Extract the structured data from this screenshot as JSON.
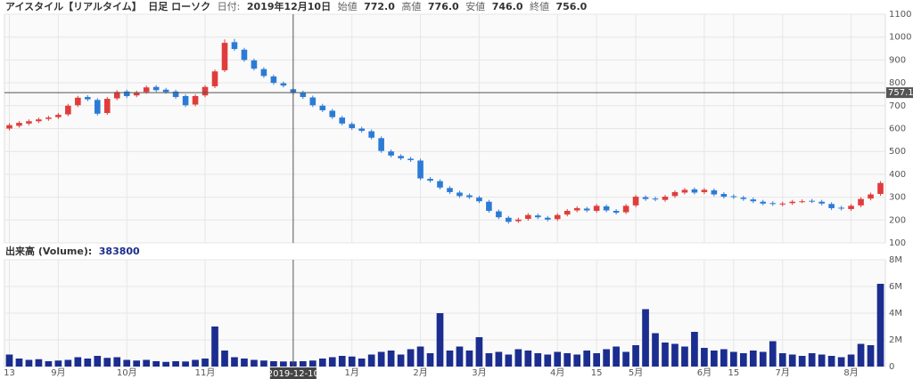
{
  "header": {
    "name": "アイスタイル【リアルタイム】",
    "chart_kind": "日足 ローソク",
    "date_label": "日付:",
    "date": "2019年12月10日",
    "open_label": "始値",
    "open": "772.0",
    "high_label": "高値",
    "high": "776.0",
    "low_label": "安値",
    "low": "746.0",
    "close_label": "終値",
    "close": "756.0",
    "volume_label": "出来高 (Volume):",
    "volume": "383800",
    "crosshair_date": "2019-12-10"
  },
  "chart_data": [
    {
      "type": "candlestick",
      "up_color": "#e03c3c",
      "down_color": "#2b7bd6",
      "open": [
        600,
        612,
        622,
        632,
        642,
        650,
        662,
        702,
        738,
        725,
        668,
        732,
        762,
        745,
        760,
        782,
        770,
        762,
        742,
        705,
        745,
        785,
        855,
        978,
        945,
        898,
        860,
        828,
        798,
        772,
        758,
        736,
        700,
        678,
        648,
        620,
        600,
        588,
        558,
        500,
        480,
        468,
        460,
        380,
        370,
        340,
        320,
        308,
        298,
        280,
        238,
        210,
        195,
        205,
        220,
        210,
        204,
        224,
        242,
        250,
        240,
        260,
        240,
        234,
        264,
        300,
        294,
        288,
        305,
        320,
        334,
        322,
        330,
        314,
        304,
        298,
        290,
        280,
        274,
        268,
        274,
        282,
        284,
        280,
        270,
        254,
        248,
        264,
        294,
        314
      ],
      "high": [
        623,
        633,
        640,
        648,
        656,
        668,
        708,
        743,
        746,
        733,
        738,
        768,
        770,
        766,
        788,
        790,
        778,
        770,
        750,
        750,
        790,
        858,
        990,
        992,
        953,
        906,
        868,
        836,
        806,
        776,
        766,
        744,
        708,
        686,
        656,
        628,
        608,
        596,
        566,
        508,
        488,
        476,
        468,
        388,
        378,
        348,
        328,
        316,
        306,
        288,
        246,
        218,
        210,
        230,
        228,
        218,
        230,
        248,
        260,
        258,
        270,
        268,
        248,
        270,
        310,
        308,
        302,
        310,
        330,
        340,
        342,
        340,
        338,
        322,
        312,
        306,
        298,
        288,
        282,
        280,
        288,
        290,
        292,
        288,
        278,
        262,
        270,
        300,
        320,
        370
      ],
      "low": [
        592,
        604,
        614,
        624,
        634,
        642,
        654,
        694,
        720,
        657,
        660,
        724,
        734,
        737,
        752,
        760,
        752,
        730,
        694,
        697,
        737,
        777,
        847,
        940,
        892,
        854,
        822,
        792,
        780,
        746,
        730,
        694,
        672,
        642,
        614,
        594,
        582,
        552,
        494,
        474,
        462,
        454,
        374,
        364,
        334,
        314,
        297,
        292,
        274,
        232,
        204,
        184,
        187,
        197,
        204,
        194,
        196,
        216,
        234,
        234,
        232,
        234,
        224,
        226,
        256,
        284,
        282,
        280,
        297,
        312,
        312,
        314,
        304,
        294,
        292,
        284,
        274,
        264,
        262,
        260,
        266,
        274,
        274,
        264,
        244,
        242,
        240,
        256,
        286,
        306
      ],
      "close": [
        615,
        625,
        632,
        640,
        648,
        660,
        700,
        735,
        728,
        665,
        730,
        760,
        742,
        758,
        780,
        768,
        760,
        738,
        702,
        742,
        782,
        850,
        975,
        948,
        900,
        862,
        830,
        800,
        788,
        756,
        738,
        702,
        680,
        650,
        622,
        602,
        590,
        560,
        502,
        482,
        470,
        462,
        382,
        372,
        342,
        322,
        305,
        300,
        282,
        240,
        212,
        192,
        202,
        222,
        212,
        202,
        222,
        240,
        252,
        242,
        262,
        242,
        232,
        262,
        302,
        292,
        290,
        302,
        322,
        332,
        320,
        332,
        312,
        302,
        300,
        292,
        282,
        272,
        270,
        272,
        280,
        282,
        282,
        272,
        252,
        250,
        262,
        292,
        312,
        362
      ],
      "ylim": [
        100,
        1100
      ],
      "yticks": [
        100,
        200,
        300,
        400,
        500,
        600,
        700,
        800,
        900,
        1000,
        1100
      ],
      "grid": true,
      "crosshair": 757.1
    },
    {
      "type": "bar",
      "color": "#1b2d8f",
      "categories": [
        "13",
        null,
        null,
        null,
        null,
        "9月",
        null,
        null,
        null,
        null,
        null,
        null,
        "10月",
        null,
        null,
        null,
        null,
        null,
        null,
        null,
        "11月",
        null,
        null,
        null,
        null,
        null,
        null,
        null,
        null,
        null,
        null,
        null,
        null,
        null,
        null,
        "1月",
        null,
        null,
        null,
        null,
        null,
        null,
        "2月",
        null,
        null,
        null,
        null,
        null,
        "3月",
        null,
        null,
        null,
        null,
        null,
        null,
        null,
        "4月",
        null,
        null,
        null,
        "15",
        null,
        null,
        null,
        "5月",
        null,
        null,
        null,
        null,
        null,
        null,
        "6月",
        null,
        null,
        "15",
        null,
        null,
        null,
        null,
        "7月",
        null,
        null,
        null,
        null,
        null,
        null,
        "8月",
        null,
        null,
        null
      ],
      "values": [
        900000,
        600000,
        500000,
        550000,
        400000,
        450000,
        500000,
        700000,
        600000,
        800000,
        650000,
        700000,
        500000,
        450000,
        500000,
        400000,
        350000,
        400000,
        380000,
        500000,
        600000,
        3000000,
        1200000,
        700000,
        600000,
        500000,
        450000,
        400000,
        380000,
        383800,
        400000,
        450000,
        600000,
        700000,
        800000,
        750000,
        600000,
        900000,
        1100000,
        1200000,
        900000,
        1300000,
        1500000,
        1000000,
        4000000,
        1200000,
        1500000,
        1200000,
        2200000,
        1000000,
        1100000,
        900000,
        1300000,
        1200000,
        1000000,
        900000,
        1100000,
        1000000,
        900000,
        1200000,
        1000000,
        1300000,
        1500000,
        1100000,
        1600000,
        4300000,
        2500000,
        1800000,
        1700000,
        1500000,
        2600000,
        1400000,
        1200000,
        1300000,
        1100000,
        1000000,
        1200000,
        1100000,
        1900000,
        1000000,
        900000,
        800000,
        1000000,
        900000,
        800000,
        700000,
        900000,
        1700000,
        1600000,
        6200000
      ],
      "ylim": [
        0,
        8000000
      ],
      "yticks": [
        0,
        {
          "value": 2000000,
          "label": "2M"
        },
        {
          "value": 4000000,
          "label": "4M"
        },
        {
          "value": 6000000,
          "label": "6M"
        },
        {
          "value": 8000000,
          "label": "8M"
        }
      ],
      "grid": true
    }
  ]
}
